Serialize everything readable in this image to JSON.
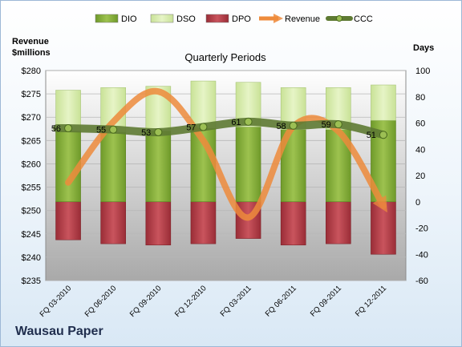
{
  "company": "Wausau Paper",
  "chart_data": {
    "type": "bar",
    "title": "Quarterly Periods",
    "y_left_label": [
      "Revenue",
      "$millions"
    ],
    "y_right_label": "Days",
    "categories": [
      "FQ 03-2010",
      "FQ 06-2010",
      "FQ 09-2010",
      "FQ 12-2010",
      "FQ 03-2011",
      "FQ 06-2011",
      "FQ 09-2011",
      "FQ 12-2011"
    ],
    "left_axis": {
      "min": 235,
      "max": 280,
      "step": 5,
      "tick_labels": [
        "$235",
        "$240",
        "$245",
        "$250",
        "$255",
        "$260",
        "$265",
        "$270",
        "$275",
        "$280"
      ]
    },
    "right_axis": {
      "min": -60,
      "max": 100,
      "step": 20,
      "tick_labels": [
        "-60",
        "-40",
        "-20",
        "0",
        "20",
        "40",
        "60",
        "80",
        "100"
      ]
    },
    "legend": [
      {
        "key": "DIO",
        "label": "DIO"
      },
      {
        "key": "DSO",
        "label": "DSO"
      },
      {
        "key": "DPO",
        "label": "DPO"
      },
      {
        "key": "Revenue",
        "label": "Revenue"
      },
      {
        "key": "CCC",
        "label": "CCC"
      }
    ],
    "legend_position": "top",
    "series": {
      "DIO": [
        54,
        53,
        54,
        56,
        57,
        55,
        55,
        62
      ],
      "DSO": [
        31,
        34,
        34,
        36,
        34,
        32,
        32,
        27
      ],
      "DPO": [
        29,
        32,
        33,
        32,
        28,
        33,
        32,
        40
      ],
      "Revenue": [
        256,
        269,
        275.5,
        265,
        248.5,
        268,
        267,
        251
      ],
      "CCC": [
        56,
        55,
        53,
        57,
        61,
        58,
        59,
        51
      ]
    },
    "ccc_labels": [
      "56",
      "55",
      "53",
      "57",
      "61",
      "58",
      "59",
      "51"
    ],
    "colors": {
      "DIO": "#86ad3a",
      "DSO": "#d8ecae",
      "DPO": "#b33c45",
      "Revenue": "#ee8b3c",
      "CCC": "#5e7a33",
      "plot_top": "#ffffff",
      "plot_bottom": "#a9a9a9"
    },
    "grid": true
  }
}
